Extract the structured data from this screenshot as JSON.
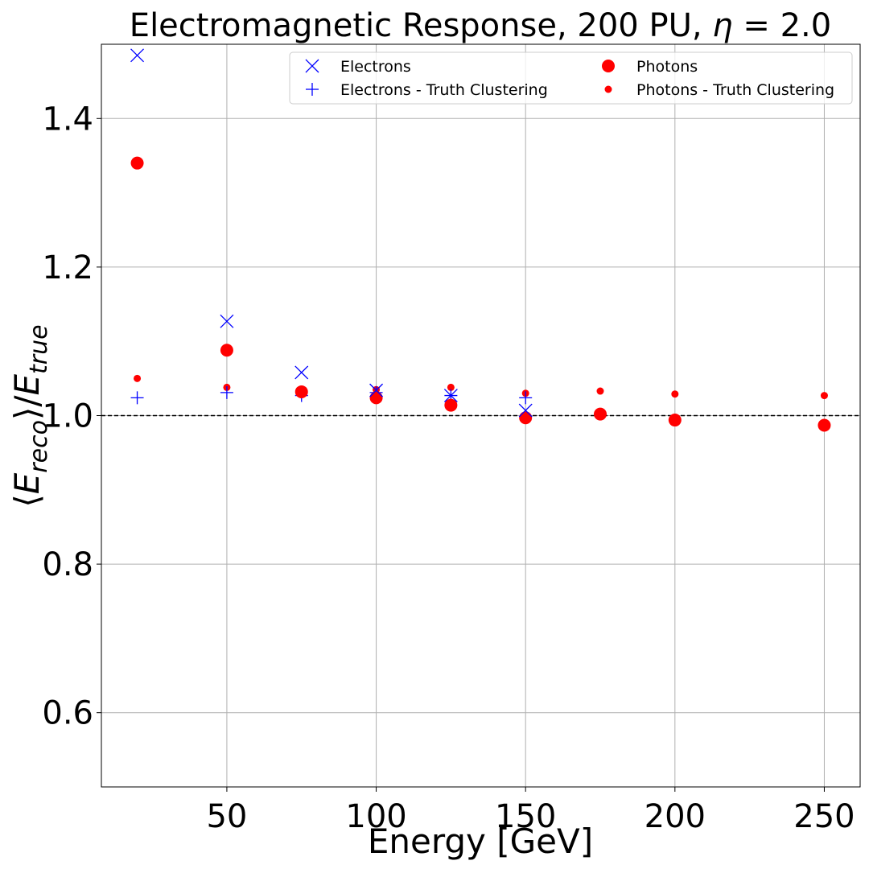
{
  "chart_data": {
    "type": "scatter",
    "title": "Electromagnetic Response, 200 PU, ",
    "title_math_symbol": "η",
    "title_math_value": " = 2.0",
    "xlabel": "Energy [GeV]",
    "ylabel_parts": {
      "open": "⟨",
      "base": "E",
      "sub1": "reco",
      "close": "⟩/",
      "base2": "E",
      "sub2": "true"
    },
    "xlim": [
      8,
      262
    ],
    "ylim": [
      0.5,
      1.5
    ],
    "xticks": [
      50,
      100,
      150,
      200,
      250
    ],
    "xtick_labels": [
      "50",
      "100",
      "150",
      "200",
      "250"
    ],
    "yticks": [
      0.6,
      0.8,
      1.0,
      1.2,
      1.4
    ],
    "ytick_labels": [
      "0.6",
      "0.8",
      "1.0",
      "1.2",
      "1.4"
    ],
    "grid": true,
    "reference_line": {
      "y": 1.0,
      "style": "dashed",
      "color": "#000000"
    },
    "legend_position": "upper-right",
    "series": [
      {
        "name": "Electrons",
        "marker": "x",
        "color": "#0000ff",
        "x": [
          20,
          50,
          75,
          100,
          125,
          150
        ],
        "y": [
          1.485,
          1.127,
          1.058,
          1.034,
          1.027,
          1.007
        ]
      },
      {
        "name": "Electrons - Truth Clustering",
        "marker": "plus",
        "color": "#0000ff",
        "x": [
          20,
          50,
          75,
          100,
          125,
          150
        ],
        "y": [
          1.024,
          1.031,
          1.027,
          1.031,
          1.027,
          1.024
        ]
      },
      {
        "name": "Photons",
        "marker": "circle-large",
        "color": "#ff0000",
        "x": [
          20,
          50,
          75,
          100,
          125,
          150,
          175,
          200,
          250
        ],
        "y": [
          1.34,
          1.088,
          1.032,
          1.024,
          1.014,
          0.997,
          1.002,
          0.994,
          0.987
        ]
      },
      {
        "name": "Photons - Truth Clustering",
        "marker": "circle-small",
        "color": "#ff0000",
        "x": [
          20,
          50,
          75,
          100,
          125,
          150,
          175,
          200,
          250
        ],
        "y": [
          1.05,
          1.038,
          1.035,
          1.035,
          1.038,
          1.03,
          1.033,
          1.029,
          1.027
        ]
      }
    ]
  }
}
